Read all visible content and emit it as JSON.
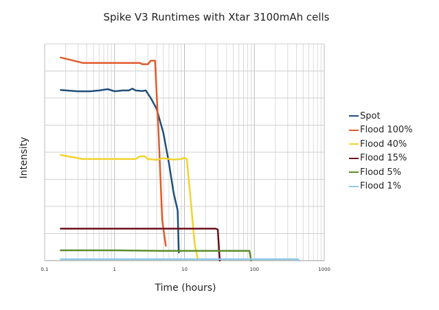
{
  "chart_data": {
    "type": "line",
    "title": "Spike V3 Runtimes with Xtar 3100mAh cells",
    "xlabel": "Time (hours)",
    "ylabel": "Intensity",
    "x_scale": "log",
    "xlim": [
      0.1,
      1000
    ],
    "x_ticks": [
      "0.1",
      "1",
      "10",
      "100",
      "1000"
    ],
    "ylim": [
      0,
      8
    ],
    "y_tick_labels": "none",
    "grid": true,
    "legend_position": "right",
    "series": [
      {
        "name": "Spot",
        "color": "#1f4e79",
        "points": [
          [
            0.17,
            6.3
          ],
          [
            0.3,
            6.25
          ],
          [
            0.45,
            6.25
          ],
          [
            0.6,
            6.28
          ],
          [
            0.8,
            6.33
          ],
          [
            1.0,
            6.25
          ],
          [
            1.3,
            6.28
          ],
          [
            1.6,
            6.28
          ],
          [
            1.8,
            6.35
          ],
          [
            2.0,
            6.28
          ],
          [
            2.5,
            6.26
          ],
          [
            2.8,
            6.28
          ],
          [
            3.3,
            6.0
          ],
          [
            4.0,
            5.6
          ],
          [
            5.0,
            4.7
          ],
          [
            6.0,
            3.6
          ],
          [
            7.0,
            2.5
          ],
          [
            8.0,
            1.85
          ],
          [
            8.3,
            0.3
          ]
        ]
      },
      {
        "name": "Flood 100%",
        "color": "#e05a2b",
        "points": [
          [
            0.17,
            7.5
          ],
          [
            0.35,
            7.3
          ],
          [
            0.6,
            7.3
          ],
          [
            1.0,
            7.3
          ],
          [
            2.0,
            7.3
          ],
          [
            2.3,
            7.3
          ],
          [
            2.5,
            7.25
          ],
          [
            3.0,
            7.25
          ],
          [
            3.3,
            7.38
          ],
          [
            3.8,
            7.38
          ],
          [
            4.3,
            4.5
          ],
          [
            4.8,
            1.5
          ],
          [
            5.4,
            0.55
          ]
        ]
      },
      {
        "name": "Flood 40%",
        "color": "#f2d32b",
        "points": [
          [
            0.17,
            3.9
          ],
          [
            0.35,
            3.75
          ],
          [
            1.0,
            3.75
          ],
          [
            2.0,
            3.75
          ],
          [
            2.3,
            3.85
          ],
          [
            2.7,
            3.85
          ],
          [
            3.0,
            3.75
          ],
          [
            4.0,
            3.72
          ],
          [
            5.0,
            3.78
          ],
          [
            7.0,
            3.73
          ],
          [
            9.0,
            3.75
          ],
          [
            10.0,
            3.8
          ],
          [
            10.8,
            3.75
          ],
          [
            12.0,
            2.5
          ],
          [
            14.0,
            0.6
          ],
          [
            15.5,
            0.05
          ]
        ]
      },
      {
        "name": "Flood 15%",
        "color": "#6b0f1a",
        "points": [
          [
            0.17,
            1.18
          ],
          [
            1.0,
            1.18
          ],
          [
            10.0,
            1.18
          ],
          [
            28.0,
            1.18
          ],
          [
            30.0,
            1.15
          ],
          [
            32.0,
            0.0
          ]
        ]
      },
      {
        "name": "Flood 5%",
        "color": "#5b8c2a",
        "points": [
          [
            0.17,
            0.38
          ],
          [
            1.0,
            0.38
          ],
          [
            4.5,
            0.36
          ],
          [
            10.0,
            0.36
          ],
          [
            50.0,
            0.36
          ],
          [
            85.0,
            0.36
          ],
          [
            90.0,
            0.0
          ]
        ]
      },
      {
        "name": "Flood 1%",
        "color": "#8ec9e8",
        "points": [
          [
            0.17,
            0.05
          ],
          [
            1.0,
            0.05
          ],
          [
            10.0,
            0.05
          ],
          [
            100.0,
            0.05
          ],
          [
            420.0,
            0.05
          ],
          [
            440.0,
            0.0
          ]
        ]
      }
    ]
  }
}
